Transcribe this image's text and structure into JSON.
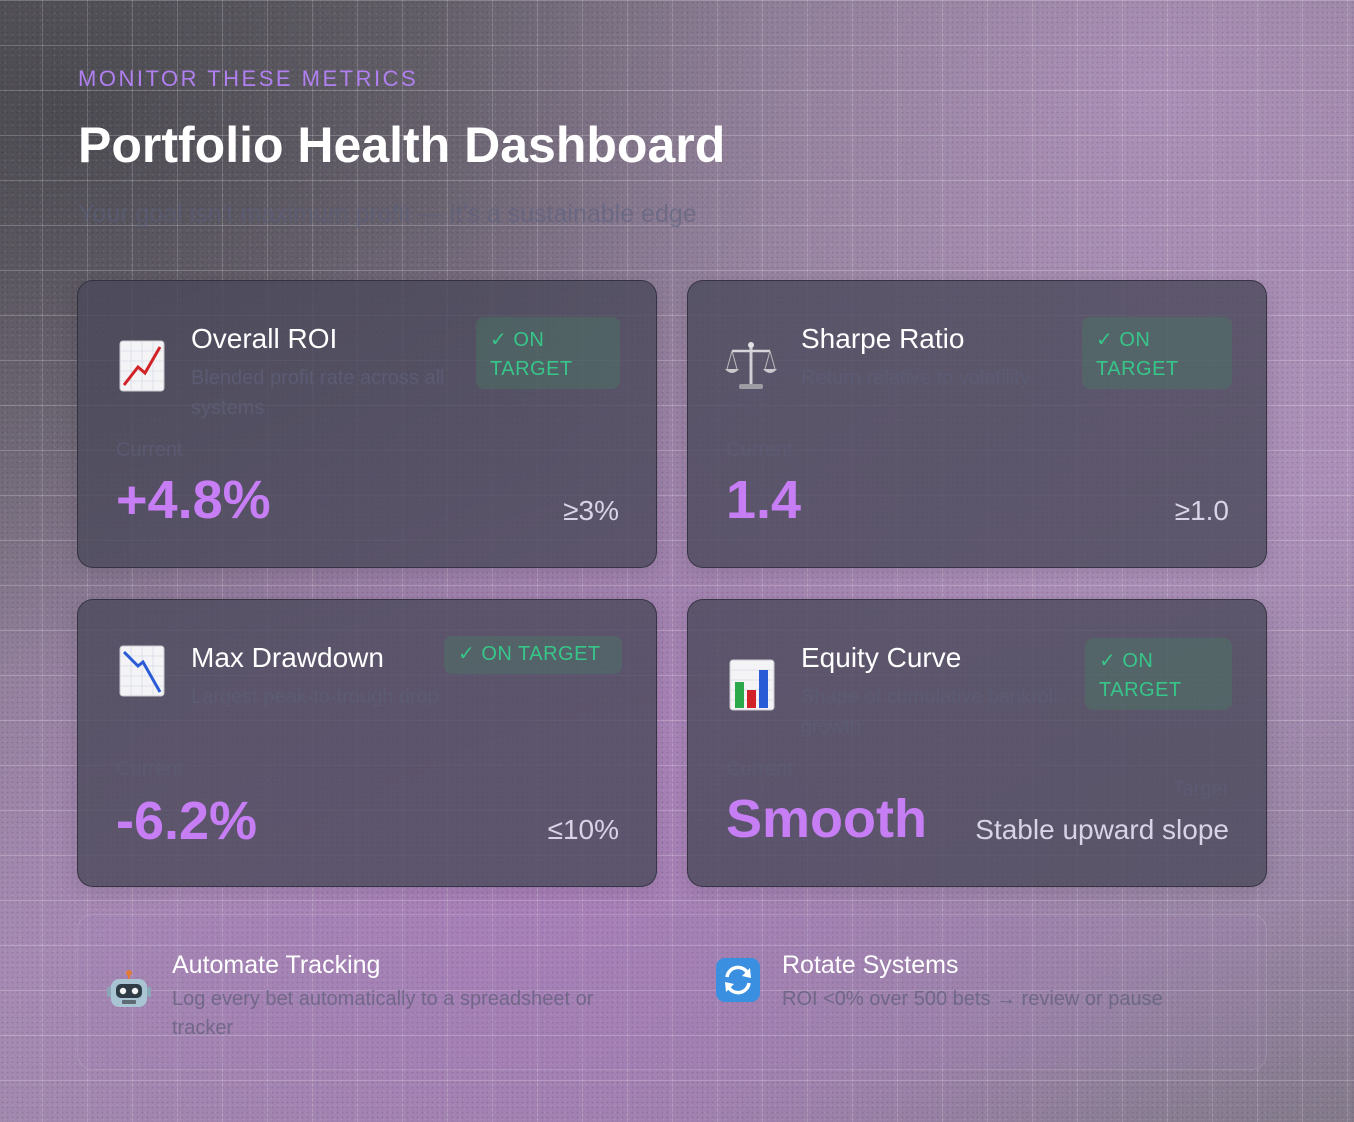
{
  "header": {
    "eyebrow": "MONITOR THESE METRICS",
    "title": "Portfolio Health Dashboard",
    "subtitle": "Your goal isn't maximum profit — it's a sustainable edge"
  },
  "metrics": [
    {
      "icon": "chart-increasing-icon",
      "title": "Overall ROI",
      "description": "Blended profit rate across all systems",
      "badge": "✓ ON TARGET",
      "current_label": "Current",
      "value": "+4.8%",
      "target": "≥3%"
    },
    {
      "icon": "balance-scale-icon",
      "title": "Sharpe Ratio",
      "description": "Return relative to volatility",
      "badge": "✓ ON TARGET",
      "current_label": "Current",
      "value": "1.4",
      "target": "≥1.0"
    },
    {
      "icon": "chart-decreasing-icon",
      "title": "Max Drawdown",
      "description": "Largest peak-to-trough drop",
      "badge": "✓ ON TARGET",
      "current_label": "Current",
      "value": "-6.2%",
      "target": "≤10%"
    },
    {
      "icon": "bar-chart-icon",
      "title": "Equity Curve",
      "description": "Shape of cumulative bankroll growth",
      "badge": "✓ ON TARGET",
      "current_label": "Current",
      "value": "Smooth",
      "target_label": "Target",
      "target": "Stable upward slope"
    }
  ],
  "tips": [
    {
      "icon": "robot-icon",
      "title": "Automate Tracking",
      "description": "Log every bet automatically to a spreadsheet or tracker"
    },
    {
      "icon": "rotate-arrows-icon",
      "title": "Rotate Systems",
      "description": "ROI <0% over 500 bets → review or pause"
    }
  ],
  "colors": {
    "accent": "#c77ef5",
    "eyebrow": "#b07ff0",
    "badge_text": "#37c68a",
    "card_bg": "#4a485a"
  }
}
